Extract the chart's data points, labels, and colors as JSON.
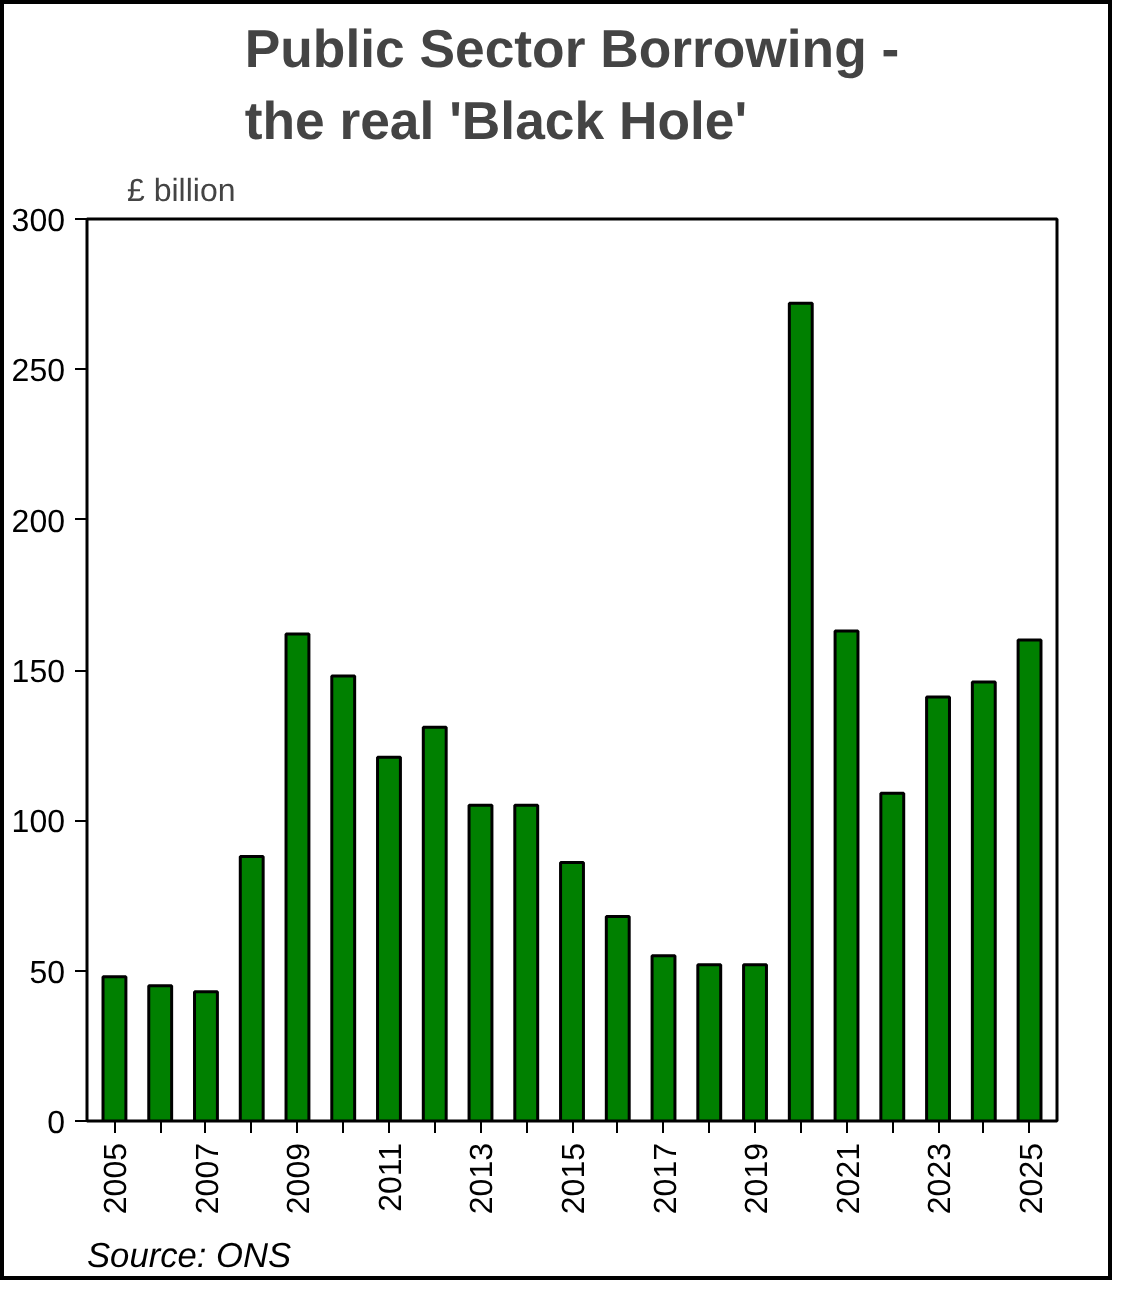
{
  "chart_data": {
    "type": "bar",
    "title": "Public Sector Borrowing -\nthe real 'Black Hole'",
    "ylabel": "£ billion",
    "categories": [
      "2005",
      null,
      "2007",
      null,
      "2009",
      null,
      "2011",
      null,
      "2013",
      null,
      "2015",
      null,
      "2017",
      null,
      "2019",
      null,
      "2021",
      null,
      "2023",
      null,
      "2025"
    ],
    "values": [
      48,
      45,
      43,
      88,
      162,
      148,
      121,
      131,
      105,
      105,
      86,
      68,
      55,
      52,
      52,
      272,
      163,
      109,
      141,
      146,
      160
    ],
    "color": "#008000",
    "ylim": [
      0,
      300
    ],
    "yticks": [
      0,
      50,
      100,
      150,
      200,
      250,
      300
    ],
    "grid": false,
    "annotations": [
      "Source: ONS"
    ]
  }
}
